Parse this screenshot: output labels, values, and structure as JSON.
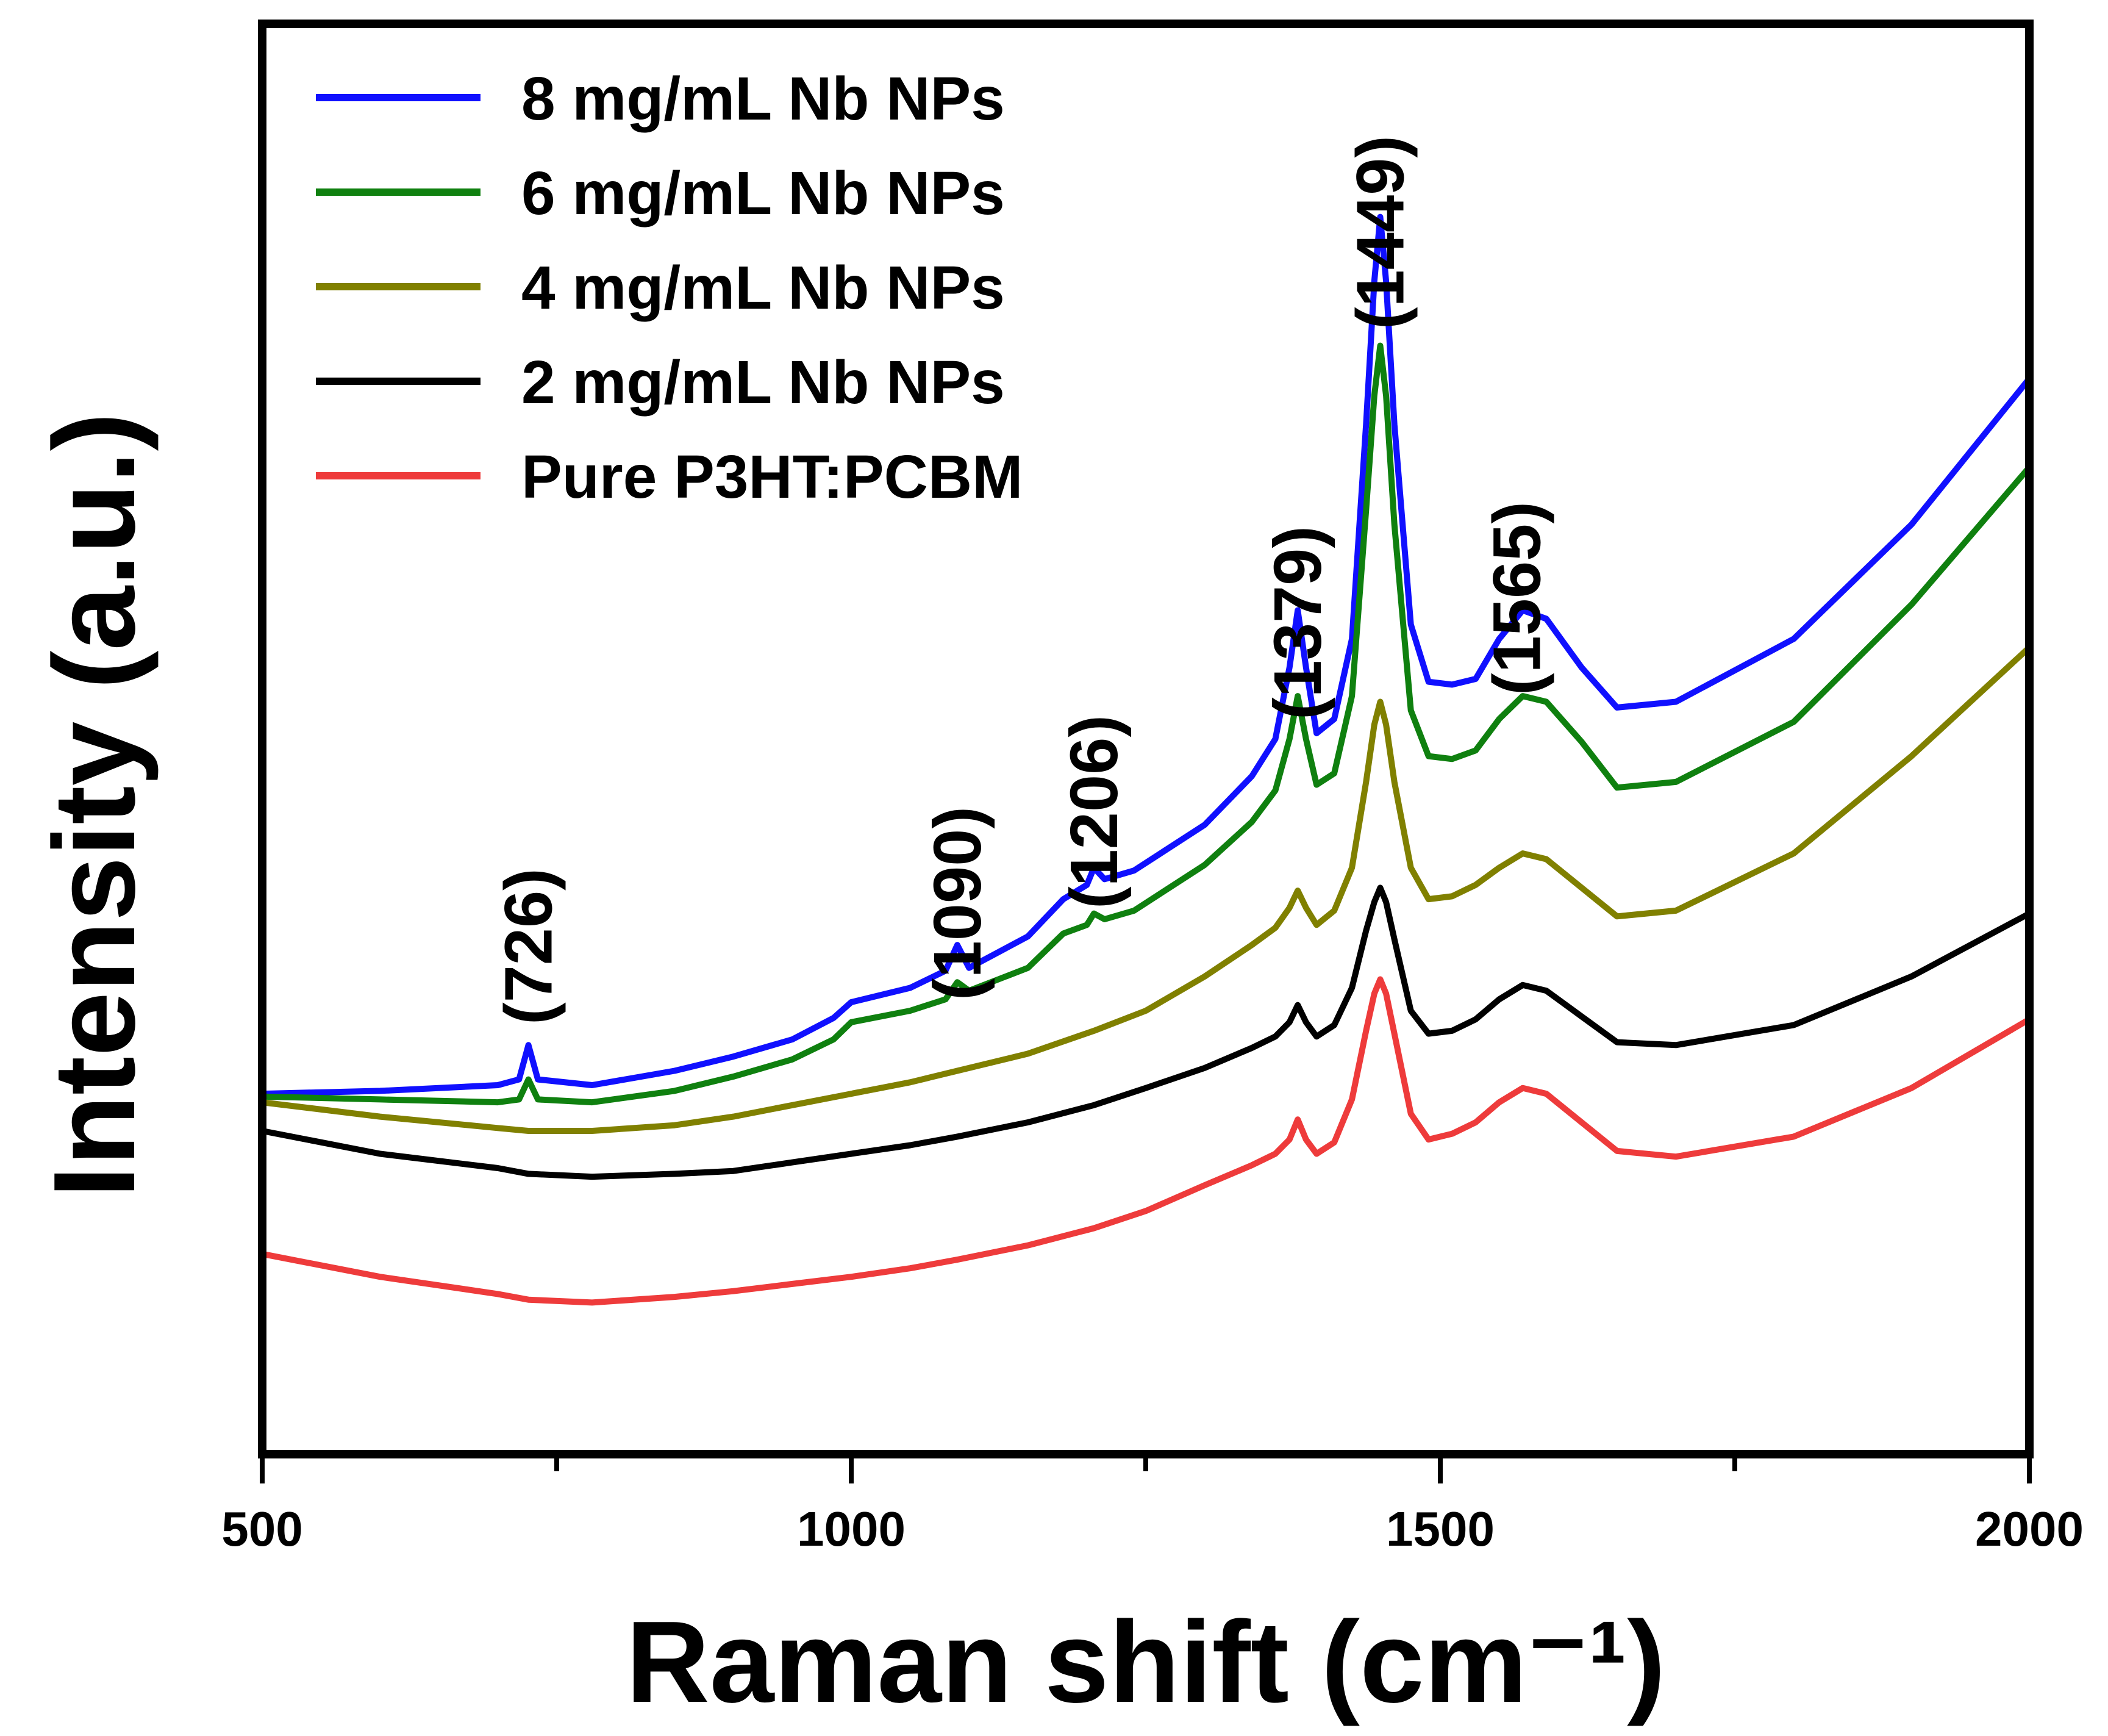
{
  "chart_data": {
    "type": "line",
    "title": "",
    "xlabel": "Raman shift (cm⁻¹)",
    "ylabel": "Intensity (a.u.)",
    "xlim": [
      500,
      2000
    ],
    "ylim": [
      0,
      100
    ],
    "yticks_shown": false,
    "x_ticks": [
      500,
      1000,
      1500,
      2000
    ],
    "x_tick_labels": [
      "500",
      "1000",
      "1500",
      "2000"
    ],
    "legend_position": "top-left",
    "peak_annotations": [
      {
        "label": "(726)",
        "x": 726
      },
      {
        "label": "(1090)",
        "x": 1090
      },
      {
        "label": "(1206)",
        "x": 1206
      },
      {
        "label": "(1379)",
        "x": 1379
      },
      {
        "label": "(1449)",
        "x": 1449
      },
      {
        "label": "(1565)",
        "x": 1565
      }
    ],
    "series": [
      {
        "name": "8 mg/mL Nb NPs",
        "color": "#1010ff",
        "points": [
          [
            500,
            25.2
          ],
          [
            600,
            25.4
          ],
          [
            700,
            25.8
          ],
          [
            718,
            26.2
          ],
          [
            726,
            28.6
          ],
          [
            734,
            26.2
          ],
          [
            780,
            25.8
          ],
          [
            850,
            26.8
          ],
          [
            900,
            27.8
          ],
          [
            950,
            29.0
          ],
          [
            985,
            30.5
          ],
          [
            1000,
            31.6
          ],
          [
            1050,
            32.6
          ],
          [
            1080,
            33.8
          ],
          [
            1090,
            35.6
          ],
          [
            1100,
            34.0
          ],
          [
            1150,
            36.2
          ],
          [
            1180,
            38.8
          ],
          [
            1200,
            39.8
          ],
          [
            1206,
            41.0
          ],
          [
            1215,
            40.2
          ],
          [
            1240,
            40.8
          ],
          [
            1300,
            44.0
          ],
          [
            1340,
            47.4
          ],
          [
            1360,
            50.0
          ],
          [
            1372,
            55.0
          ],
          [
            1379,
            59.0
          ],
          [
            1386,
            55.0
          ],
          [
            1395,
            50.4
          ],
          [
            1410,
            51.4
          ],
          [
            1425,
            57.0
          ],
          [
            1437,
            72.0
          ],
          [
            1444,
            82.0
          ],
          [
            1449,
            86.5
          ],
          [
            1454,
            82.0
          ],
          [
            1461,
            72.0
          ],
          [
            1475,
            58.0
          ],
          [
            1490,
            54.0
          ],
          [
            1510,
            53.8
          ],
          [
            1530,
            54.2
          ],
          [
            1550,
            57.0
          ],
          [
            1570,
            59.0
          ],
          [
            1590,
            58.4
          ],
          [
            1620,
            55.0
          ],
          [
            1650,
            52.2
          ],
          [
            1700,
            52.6
          ],
          [
            1800,
            57.0
          ],
          [
            1900,
            65.0
          ],
          [
            2000,
            75.2
          ]
        ]
      },
      {
        "name": "6 mg/mL Nb NPs",
        "color": "#0f800f",
        "points": [
          [
            500,
            25.0
          ],
          [
            600,
            24.8
          ],
          [
            700,
            24.6
          ],
          [
            718,
            24.8
          ],
          [
            726,
            26.2
          ],
          [
            734,
            24.8
          ],
          [
            780,
            24.6
          ],
          [
            850,
            25.4
          ],
          [
            900,
            26.4
          ],
          [
            950,
            27.6
          ],
          [
            985,
            29.0
          ],
          [
            1000,
            30.2
          ],
          [
            1050,
            31.0
          ],
          [
            1080,
            31.8
          ],
          [
            1090,
            33.0
          ],
          [
            1100,
            32.4
          ],
          [
            1150,
            34.0
          ],
          [
            1180,
            36.4
          ],
          [
            1200,
            37.0
          ],
          [
            1206,
            37.8
          ],
          [
            1215,
            37.4
          ],
          [
            1240,
            38.0
          ],
          [
            1300,
            41.2
          ],
          [
            1340,
            44.2
          ],
          [
            1360,
            46.4
          ],
          [
            1372,
            50.0
          ],
          [
            1379,
            53.0
          ],
          [
            1386,
            50.0
          ],
          [
            1395,
            46.8
          ],
          [
            1410,
            47.6
          ],
          [
            1425,
            53.0
          ],
          [
            1437,
            66.0
          ],
          [
            1444,
            74.0
          ],
          [
            1449,
            77.5
          ],
          [
            1454,
            74.0
          ],
          [
            1461,
            65.0
          ],
          [
            1475,
            52.0
          ],
          [
            1490,
            48.8
          ],
          [
            1510,
            48.6
          ],
          [
            1530,
            49.2
          ],
          [
            1550,
            51.4
          ],
          [
            1570,
            53.0
          ],
          [
            1590,
            52.6
          ],
          [
            1620,
            49.8
          ],
          [
            1650,
            46.6
          ],
          [
            1700,
            47.0
          ],
          [
            1800,
            51.2
          ],
          [
            1900,
            59.4
          ],
          [
            2000,
            69.0
          ]
        ]
      },
      {
        "name": "4 mg/mL Nb NPs",
        "color": "#808000",
        "points": [
          [
            500,
            24.6
          ],
          [
            600,
            23.6
          ],
          [
            700,
            22.8
          ],
          [
            726,
            22.6
          ],
          [
            780,
            22.6
          ],
          [
            850,
            23.0
          ],
          [
            900,
            23.6
          ],
          [
            950,
            24.4
          ],
          [
            1000,
            25.2
          ],
          [
            1050,
            26.0
          ],
          [
            1090,
            26.8
          ],
          [
            1150,
            28.0
          ],
          [
            1206,
            29.6
          ],
          [
            1250,
            31.0
          ],
          [
            1300,
            33.4
          ],
          [
            1340,
            35.6
          ],
          [
            1360,
            36.8
          ],
          [
            1372,
            38.2
          ],
          [
            1379,
            39.4
          ],
          [
            1386,
            38.2
          ],
          [
            1395,
            37.0
          ],
          [
            1410,
            38.0
          ],
          [
            1425,
            41.0
          ],
          [
            1437,
            47.0
          ],
          [
            1444,
            51.0
          ],
          [
            1449,
            52.6
          ],
          [
            1454,
            51.0
          ],
          [
            1461,
            47.0
          ],
          [
            1475,
            41.0
          ],
          [
            1490,
            38.8
          ],
          [
            1510,
            39.0
          ],
          [
            1530,
            39.8
          ],
          [
            1550,
            41.0
          ],
          [
            1570,
            42.0
          ],
          [
            1590,
            41.6
          ],
          [
            1620,
            39.6
          ],
          [
            1650,
            37.6
          ],
          [
            1700,
            38.0
          ],
          [
            1800,
            42.0
          ],
          [
            1900,
            48.8
          ],
          [
            2000,
            56.4
          ]
        ]
      },
      {
        "name": "2 mg/mL Nb NPs",
        "color": "#000000",
        "points": [
          [
            500,
            22.6
          ],
          [
            600,
            21.0
          ],
          [
            700,
            20.0
          ],
          [
            726,
            19.6
          ],
          [
            780,
            19.4
          ],
          [
            850,
            19.6
          ],
          [
            900,
            19.8
          ],
          [
            950,
            20.4
          ],
          [
            1000,
            21.0
          ],
          [
            1050,
            21.6
          ],
          [
            1090,
            22.2
          ],
          [
            1150,
            23.2
          ],
          [
            1206,
            24.4
          ],
          [
            1250,
            25.6
          ],
          [
            1300,
            27.0
          ],
          [
            1340,
            28.4
          ],
          [
            1360,
            29.2
          ],
          [
            1372,
            30.2
          ],
          [
            1379,
            31.4
          ],
          [
            1386,
            30.2
          ],
          [
            1395,
            29.2
          ],
          [
            1410,
            30.0
          ],
          [
            1425,
            32.6
          ],
          [
            1437,
            36.6
          ],
          [
            1444,
            38.6
          ],
          [
            1449,
            39.6
          ],
          [
            1454,
            38.6
          ],
          [
            1461,
            36.0
          ],
          [
            1475,
            31.0
          ],
          [
            1490,
            29.4
          ],
          [
            1510,
            29.6
          ],
          [
            1530,
            30.4
          ],
          [
            1550,
            31.8
          ],
          [
            1570,
            32.8
          ],
          [
            1590,
            32.4
          ],
          [
            1620,
            30.6
          ],
          [
            1650,
            28.8
          ],
          [
            1700,
            28.6
          ],
          [
            1800,
            30.0
          ],
          [
            1900,
            33.4
          ],
          [
            2000,
            37.8
          ]
        ]
      },
      {
        "name": "Pure P3HT:PCBM",
        "color": "#ee3b3b",
        "points": [
          [
            500,
            14.0
          ],
          [
            600,
            12.4
          ],
          [
            700,
            11.2
          ],
          [
            726,
            10.8
          ],
          [
            780,
            10.6
          ],
          [
            850,
            11.0
          ],
          [
            900,
            11.4
          ],
          [
            950,
            11.9
          ],
          [
            1000,
            12.4
          ],
          [
            1050,
            13.0
          ],
          [
            1090,
            13.6
          ],
          [
            1150,
            14.6
          ],
          [
            1206,
            15.8
          ],
          [
            1250,
            17.0
          ],
          [
            1300,
            18.8
          ],
          [
            1340,
            20.2
          ],
          [
            1360,
            21.0
          ],
          [
            1372,
            22.0
          ],
          [
            1379,
            23.4
          ],
          [
            1386,
            22.0
          ],
          [
            1395,
            21.0
          ],
          [
            1410,
            21.8
          ],
          [
            1425,
            24.8
          ],
          [
            1437,
            29.6
          ],
          [
            1444,
            32.2
          ],
          [
            1449,
            33.2
          ],
          [
            1454,
            32.2
          ],
          [
            1461,
            29.4
          ],
          [
            1475,
            23.8
          ],
          [
            1490,
            22.0
          ],
          [
            1510,
            22.4
          ],
          [
            1530,
            23.2
          ],
          [
            1550,
            24.6
          ],
          [
            1570,
            25.6
          ],
          [
            1590,
            25.2
          ],
          [
            1620,
            23.2
          ],
          [
            1650,
            21.2
          ],
          [
            1700,
            20.8
          ],
          [
            1800,
            22.2
          ],
          [
            1900,
            25.6
          ],
          [
            2000,
            30.4
          ]
        ]
      }
    ]
  }
}
